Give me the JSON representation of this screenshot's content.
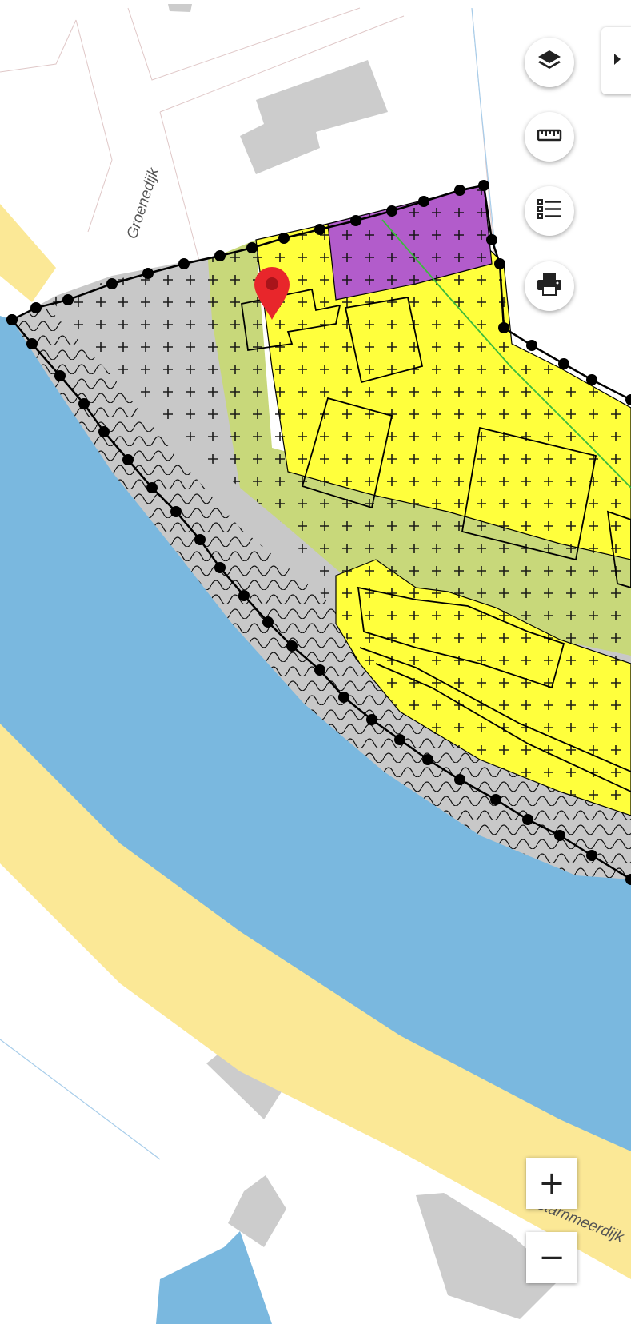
{
  "map": {
    "street_labels": {
      "north": "Groenedijk",
      "south": "Starnmeerdijk"
    },
    "colors": {
      "water": "#7ab8df",
      "dike_road": "#fbe896",
      "building_base": "#cccccc",
      "residential": "#ffff3c",
      "garden": "#c8d87a",
      "traffic": "#c8c8c8",
      "business": "#b25ccb",
      "plan_boundary": "#000000",
      "marker": "#e8262b"
    },
    "icons": {
      "layers": "layers-icon",
      "measure": "ruler-icon",
      "legend": "list-icon",
      "print": "printer-icon",
      "panel": "caret-right-icon"
    }
  },
  "zoom": {
    "in_label": "+",
    "out_label": "−"
  }
}
